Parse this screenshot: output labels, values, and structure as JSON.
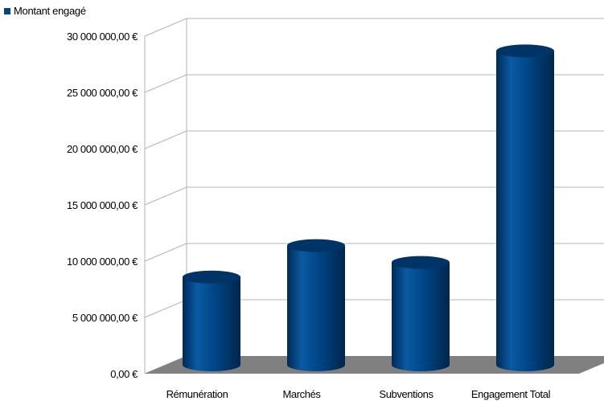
{
  "chart_data": {
    "type": "bar",
    "style": "3d-cylinder",
    "title": "",
    "xlabel": "",
    "ylabel": "",
    "categories": [
      "Rémunération",
      "Marchés",
      "Subventions",
      "Engagement Total"
    ],
    "series": [
      {
        "name": "Montant engagé",
        "values": [
          7800000,
          10600000,
          9100000,
          27900000
        ]
      }
    ],
    "ylim": [
      0,
      30000000
    ],
    "y_ticks": [
      0,
      5000000,
      10000000,
      15000000,
      20000000,
      25000000,
      30000000
    ],
    "y_tick_labels": [
      "0,00 €",
      "5 000 000,00 €",
      "10 000 000,00 €",
      "15 000 000,00 €",
      "20 000 000,00 €",
      "25 000 000,00 €",
      "30 000 000,00 €"
    ],
    "grid": true,
    "legend_position": "top-left",
    "colors": {
      "bar": "#004586",
      "wall_line": "#b3b3b3",
      "floor": "#808080"
    }
  }
}
